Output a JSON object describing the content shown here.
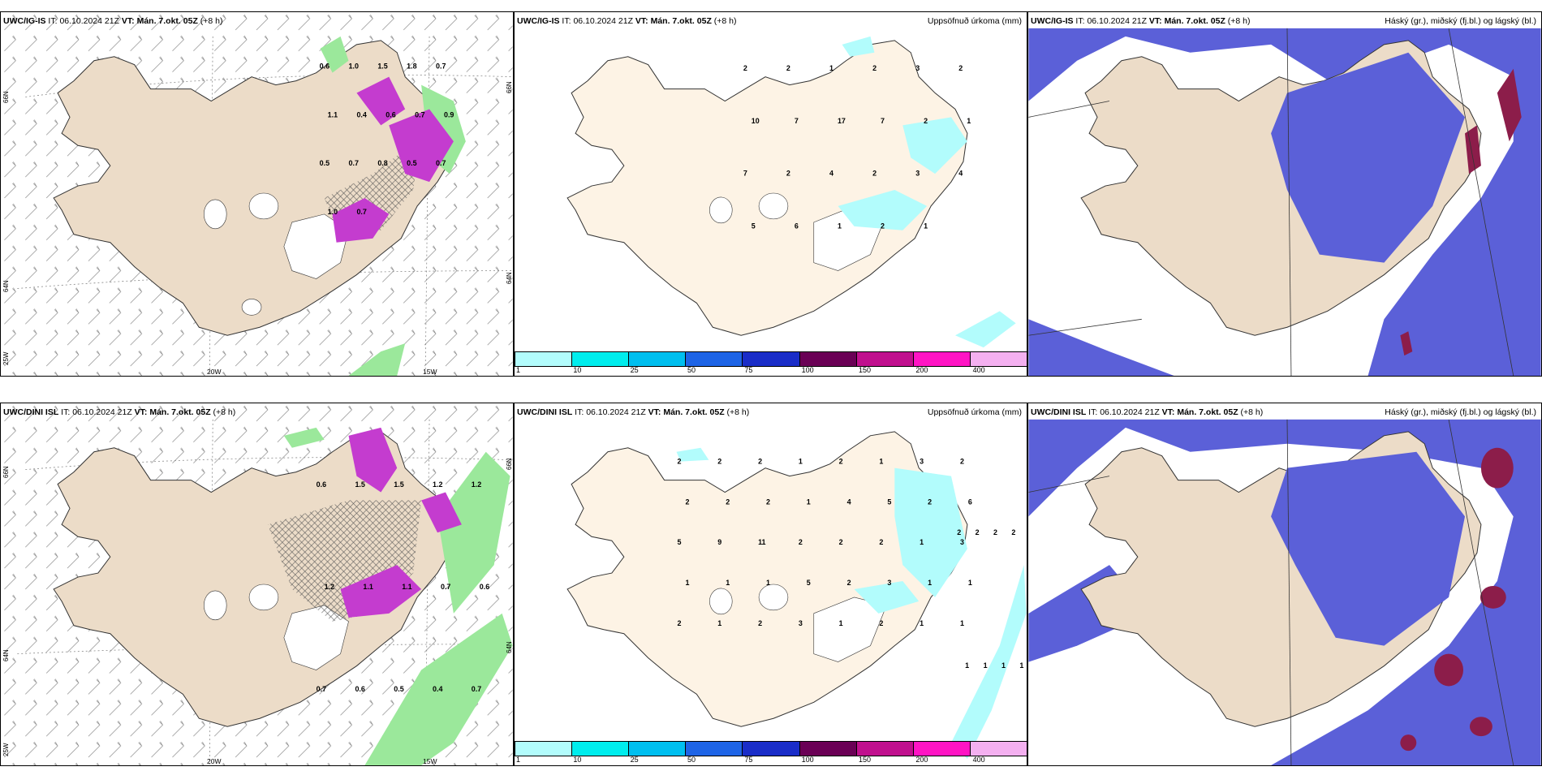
{
  "panels": [
    {
      "model": "UWC/IG-IS",
      "it_label": "IT:",
      "it": "06.10.2024 21Z",
      "vt_label": "VT: Mán. 7.okt. 05Z",
      "lead": "(+8 h)",
      "right": ""
    },
    {
      "model": "UWC/IG-IS",
      "it_label": "IT:",
      "it": "06.10.2024 21Z",
      "vt_label": "VT: Mán. 7.okt. 05Z",
      "lead": "(+8 h)",
      "right": "Uppsöfnuð úrkoma (mm)"
    },
    {
      "model": "UWC/IG-IS",
      "it_label": "IT:",
      "it": "06.10.2024 21Z",
      "vt_label": "VT: Mán. 7.okt. 05Z",
      "lead": "(+8 h)",
      "right": "Háský (gr.), miðský (fj.bl.) og lágský (bl.)"
    },
    {
      "model": "UWC/DINI ISL",
      "it_label": "IT:",
      "it": "06.10.2024 21Z",
      "vt_label": "VT: Mán. 7.okt. 05Z",
      "lead": "(+8 h)",
      "right": ""
    },
    {
      "model": "UWC/DINI ISL",
      "it_label": "IT:",
      "it": "06.10.2024 21Z",
      "vt_label": "VT: Mán. 7.okt. 05Z",
      "lead": "(+8 h)",
      "right": "Uppsöfnuð úrkoma (mm)"
    },
    {
      "model": "UWC/DINI ISL",
      "it_label": "IT:",
      "it": "06.10.2024 21Z",
      "vt_label": "VT: Mán. 7.okt. 05Z",
      "lead": "(+8 h)",
      "right": "Háský (gr.), miðský (fj.bl.) og lágský (bl.)"
    }
  ],
  "axis_labels": {
    "lat_66": "66N",
    "lat_64": "64N",
    "lon_25": "25W",
    "lon_20": "20W",
    "lon_15": "15W"
  },
  "colorbar": {
    "ticks": [
      "1",
      "10",
      "25",
      "50",
      "75",
      "100",
      "150",
      "200",
      "400"
    ],
    "colors": [
      "#b2fcfc",
      "#00eded",
      "#00bfef",
      "#1e64e6",
      "#1a2dc8",
      "#6a0055",
      "#c0108e",
      "#ff14c4",
      "#f4b0f0"
    ]
  },
  "precip_labels_top": [
    "2",
    "2",
    "1",
    "2",
    "3",
    "2",
    "10",
    "7",
    "17",
    "7",
    "2",
    "1",
    "7",
    "2",
    "4",
    "2",
    "3",
    "4",
    "5",
    "6",
    "1",
    "2",
    "1"
  ],
  "precip_labels_bottom": [
    "2",
    "2",
    "2",
    "1",
    "2",
    "1",
    "3",
    "2",
    "2",
    "2",
    "2",
    "1",
    "4",
    "5",
    "2",
    "6",
    "5",
    "9",
    "11",
    "2",
    "2",
    "2",
    "1",
    "3",
    "1",
    "1",
    "1",
    "5",
    "2",
    "3",
    "1",
    "1",
    "2",
    "1",
    "2",
    "3",
    "1",
    "2",
    "1",
    "1"
  ],
  "precip_edge_labels_bottom": [
    "2",
    "2",
    "2",
    "2",
    "1",
    "1",
    "1",
    "1"
  ],
  "windgust_labels_top": [
    "0.6",
    "1.0",
    "1.5",
    "1.8",
    "0.7",
    "1.1",
    "0.4",
    "0.6",
    "0.7",
    "0.9",
    "0.5",
    "0.7",
    "0.8",
    "0.5",
    "0.7",
    "1.0",
    "0.7"
  ],
  "windgust_labels_bottom": [
    "0.6",
    "1.5",
    "1.5",
    "1.2",
    "1.2",
    "1.2",
    "1.1",
    "1.1",
    "0.7",
    "0.6",
    "0.7",
    "0.6",
    "0.5",
    "0.4",
    "0.7"
  ],
  "colors": {
    "land": "#ecdcc8",
    "land_precip": "#fdf3e5",
    "snow": "#ffffff",
    "green": "#9be89b",
    "magenta": "#c43ccf",
    "cloud_mid": "#5b60d8",
    "cloud_low": "#3a7ae8",
    "cloud_high": "#8c1d4a"
  }
}
